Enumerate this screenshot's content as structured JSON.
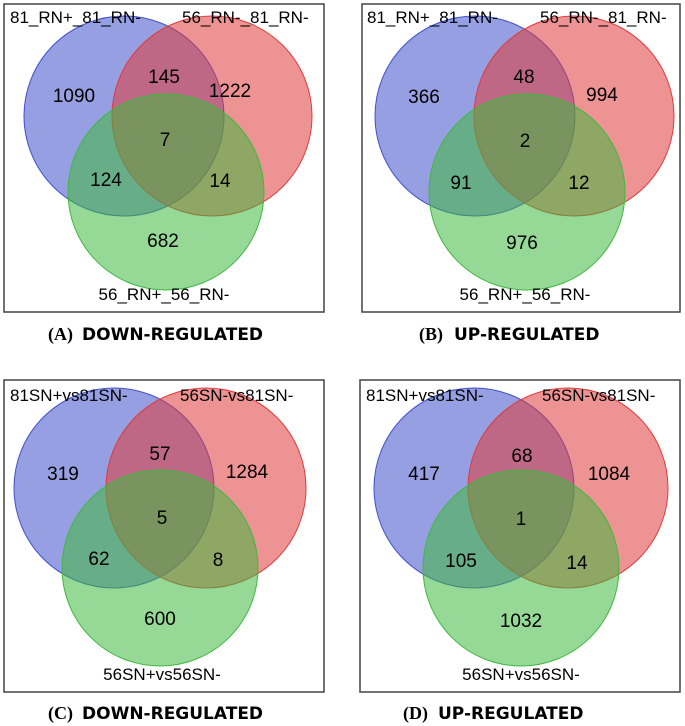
{
  "colors": {
    "blue_set": "#3f51c9",
    "red_set": "#e03a3a",
    "green_set": "#3fb83f",
    "frame": "#444444"
  },
  "panels": [
    {
      "letter": "(A)",
      "title": "DOWN-REGULATED",
      "set_labels": [
        "81_RN+_81_RN-",
        "56_RN-_81_RN-",
        "56_RN+_56_RN-"
      ],
      "counts": {
        "a_only": "1090",
        "b_only": "1222",
        "c_only": "682",
        "ab": "145",
        "ac": "124",
        "bc": "14",
        "abc": "7"
      }
    },
    {
      "letter": "(B)",
      "title": "UP-REGULATED",
      "set_labels": [
        "81_RN+_81_RN-",
        "56_RN-_81_RN-",
        "56_RN+_56_RN-"
      ],
      "counts": {
        "a_only": "366",
        "b_only": "994",
        "c_only": "976",
        "ab": "48",
        "ac": "91",
        "bc": "12",
        "abc": "2"
      }
    },
    {
      "letter": "(C)",
      "title": "DOWN-REGULATED",
      "set_labels": [
        "81SN+vs81SN-",
        "56SN-vs81SN-",
        "56SN+vs56SN-"
      ],
      "counts": {
        "a_only": "319",
        "b_only": "1284",
        "c_only": "600",
        "ab": "57",
        "ac": "62",
        "bc": "8",
        "abc": "5"
      }
    },
    {
      "letter": "(D)",
      "title": "UP-REGULATED",
      "set_labels": [
        "81SN+vs81SN-",
        "56SN-vs81SN-",
        "56SN+vs56SN-"
      ],
      "counts": {
        "a_only": "417",
        "b_only": "1084",
        "c_only": "1032",
        "ab": "68",
        "ac": "105",
        "bc": "14",
        "abc": "1"
      }
    }
  ]
}
